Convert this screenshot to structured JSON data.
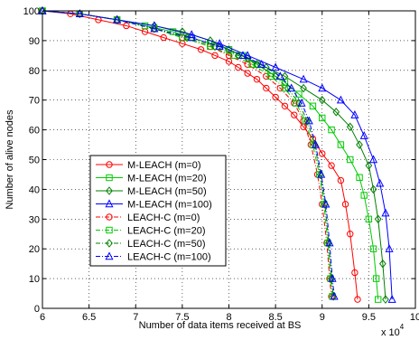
{
  "chart_data": {
    "type": "line",
    "title": "",
    "xlabel": "Number of data items received at BS",
    "ylabel": "Number of alive nodes",
    "x_multiplier": "x 10",
    "x_multiplier_exp": "4",
    "xlim": [
      6,
      10
    ],
    "ylim": [
      0,
      100
    ],
    "xticks": [
      6,
      6.5,
      7,
      7.5,
      8,
      8.5,
      9,
      9.5,
      10
    ],
    "xtick_labels": [
      "6",
      "6.5",
      "7",
      "7.5",
      "8",
      "8.5",
      "9",
      "9.5",
      "10"
    ],
    "yticks": [
      0,
      10,
      20,
      30,
      40,
      50,
      60,
      70,
      80,
      90,
      100
    ],
    "ytick_labels": [
      "0",
      "10",
      "20",
      "30",
      "40",
      "50",
      "60",
      "70",
      "80",
      "90",
      "100"
    ],
    "grid": true,
    "legend_position": "lower-left",
    "series": [
      {
        "name": "M-LEACH (m=0)",
        "color": "#ff0000",
        "marker": "circle",
        "dash": "solid",
        "x": [
          6.0,
          6.3,
          6.6,
          6.9,
          7.1,
          7.3,
          7.5,
          7.7,
          7.85,
          8.0,
          8.1,
          8.2,
          8.3,
          8.4,
          8.5,
          8.6,
          8.7,
          8.8,
          8.9,
          9.0,
          9.1,
          9.2,
          9.25,
          9.3,
          9.35,
          9.38
        ],
        "y": [
          100,
          99,
          97,
          95,
          93,
          91,
          89,
          87,
          85,
          83,
          81,
          79,
          77,
          74,
          71,
          68,
          65,
          61,
          57,
          52,
          48,
          43,
          35,
          25,
          12,
          3
        ]
      },
      {
        "name": "M-LEACH (m=20)",
        "color": "#00cc00",
        "marker": "square",
        "dash": "solid",
        "x": [
          6.0,
          6.4,
          6.8,
          7.1,
          7.4,
          7.6,
          7.8,
          8.0,
          8.15,
          8.3,
          8.45,
          8.6,
          8.75,
          8.9,
          9.0,
          9.1,
          9.2,
          9.3,
          9.4,
          9.45,
          9.5,
          9.55,
          9.58,
          9.6
        ],
        "y": [
          100,
          99,
          97,
          95,
          93,
          91,
          89,
          87,
          85,
          82,
          79,
          76,
          72,
          68,
          64,
          60,
          55,
          50,
          44,
          38,
          30,
          20,
          10,
          3
        ]
      },
      {
        "name": "M-LEACH (m=50)",
        "color": "#008000",
        "marker": "diamond",
        "dash": "solid",
        "x": [
          6.0,
          6.4,
          6.8,
          7.2,
          7.5,
          7.8,
          8.0,
          8.2,
          8.4,
          8.6,
          8.8,
          9.0,
          9.15,
          9.3,
          9.4,
          9.5,
          9.55,
          9.6,
          9.65,
          9.68
        ],
        "y": [
          100,
          99,
          97,
          95,
          93,
          90,
          87,
          84,
          81,
          78,
          74,
          70,
          66,
          61,
          55,
          48,
          40,
          30,
          15,
          3
        ]
      },
      {
        "name": "M-LEACH (m=100)",
        "color": "#0000ff",
        "marker": "triangle",
        "dash": "solid",
        "x": [
          6.0,
          6.4,
          6.8,
          7.2,
          7.6,
          7.9,
          8.2,
          8.5,
          8.8,
          9.0,
          9.2,
          9.35,
          9.45,
          9.55,
          9.62,
          9.68,
          9.72,
          9.75
        ],
        "y": [
          100,
          99,
          97,
          95,
          92,
          89,
          85,
          81,
          77,
          74,
          70,
          65,
          58,
          50,
          42,
          32,
          20,
          3
        ]
      },
      {
        "name": "LEACH-C (m=0)",
        "color": "#ff0000",
        "marker": "circle",
        "dash": "dashdot",
        "x": [
          6.0,
          6.4,
          6.8,
          7.2,
          7.5,
          7.8,
          8.0,
          8.2,
          8.4,
          8.55,
          8.7,
          8.8,
          8.88,
          8.95,
          9.0,
          9.05,
          9.08,
          9.1
        ],
        "y": [
          100,
          99,
          97,
          94,
          91,
          88,
          85,
          82,
          78,
          74,
          69,
          63,
          55,
          45,
          35,
          22,
          10,
          4
        ]
      },
      {
        "name": "LEACH-C (m=20)",
        "color": "#00cc00",
        "marker": "square",
        "dash": "dashdot",
        "x": [
          6.0,
          6.4,
          6.8,
          7.2,
          7.5,
          7.8,
          8.05,
          8.25,
          8.45,
          8.6,
          8.72,
          8.82,
          8.9,
          8.97,
          9.02,
          9.06,
          9.09,
          9.11
        ],
        "y": [
          100,
          99,
          97,
          94,
          91,
          88,
          85,
          82,
          78,
          74,
          69,
          63,
          55,
          45,
          35,
          22,
          10,
          4
        ]
      },
      {
        "name": "LEACH-C (m=50)",
        "color": "#008000",
        "marker": "diamond",
        "dash": "dashdot",
        "x": [
          6.0,
          6.4,
          6.8,
          7.2,
          7.55,
          7.85,
          8.1,
          8.3,
          8.5,
          8.63,
          8.75,
          8.84,
          8.92,
          8.98,
          9.03,
          9.07,
          9.1,
          9.12
        ],
        "y": [
          100,
          99,
          97,
          94,
          91,
          88,
          85,
          82,
          78,
          74,
          69,
          63,
          55,
          45,
          35,
          22,
          10,
          4
        ]
      },
      {
        "name": "LEACH-C (m=100)",
        "color": "#0000ff",
        "marker": "triangle",
        "dash": "dashdot",
        "x": [
          6.0,
          6.4,
          6.8,
          7.2,
          7.6,
          7.9,
          8.15,
          8.35,
          8.55,
          8.67,
          8.78,
          8.86,
          8.93,
          8.99,
          9.04,
          9.08,
          9.11,
          9.13
        ],
        "y": [
          100,
          99,
          97,
          94,
          91,
          88,
          85,
          82,
          78,
          74,
          69,
          63,
          55,
          45,
          35,
          22,
          10,
          4
        ]
      }
    ]
  }
}
